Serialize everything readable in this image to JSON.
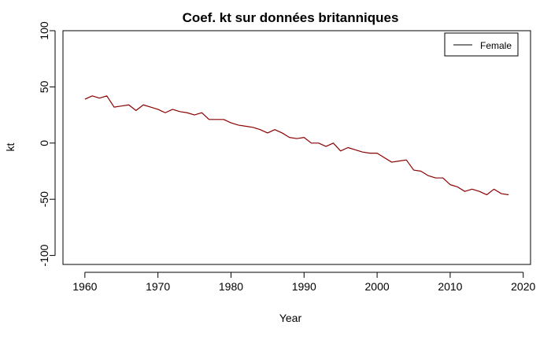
{
  "chart_data": {
    "type": "line",
    "title": "Coef. kt sur données britanniques",
    "xlabel": "Year",
    "ylabel": "kt",
    "xlim": [
      1957,
      2021
    ],
    "ylim": [
      -108,
      100
    ],
    "x_ticks": [
      1960,
      1970,
      1980,
      1990,
      2000,
      2010,
      2020
    ],
    "y_ticks": [
      -100,
      -50,
      0,
      50,
      100
    ],
    "x_tick_labels": [
      "1960",
      "1970",
      "1980",
      "1990",
      "2000",
      "2010",
      "2020"
    ],
    "y_tick_labels": [
      "-100",
      "-50",
      "0",
      "50",
      "100"
    ],
    "grid": false,
    "legend": {
      "position": "top-right",
      "entries": [
        "Female"
      ]
    },
    "series": [
      {
        "name": "Female",
        "color": "#8b0000",
        "x": [
          1960,
          1961,
          1962,
          1963,
          1964,
          1965,
          1966,
          1967,
          1968,
          1969,
          1970,
          1971,
          1972,
          1973,
          1974,
          1975,
          1976,
          1977,
          1978,
          1979,
          1980,
          1981,
          1982,
          1983,
          1984,
          1985,
          1986,
          1987,
          1988,
          1989,
          1990,
          1991,
          1992,
          1993,
          1994,
          1995,
          1996,
          1997,
          1998,
          1999,
          2000,
          2001,
          2002,
          2003,
          2004,
          2005,
          2006,
          2007,
          2008,
          2009,
          2010,
          2011,
          2012,
          2013,
          2014,
          2015,
          2016,
          2017,
          2018
        ],
        "values": [
          39,
          42,
          40,
          42,
          32,
          33,
          34,
          29,
          34,
          32,
          30,
          27,
          30,
          28,
          27,
          25,
          27,
          21,
          21,
          21,
          18,
          16,
          15,
          14,
          12,
          9,
          12,
          9,
          5,
          4,
          5,
          0,
          0,
          -3,
          0,
          -7,
          -4,
          -6,
          -8,
          -9,
          -9,
          -13,
          -17,
          -16,
          -15,
          -24,
          -25,
          -29,
          -31,
          -31,
          -37,
          -39,
          -43,
          -41,
          -43,
          -46,
          -41,
          -45,
          -46
        ]
      }
    ]
  }
}
